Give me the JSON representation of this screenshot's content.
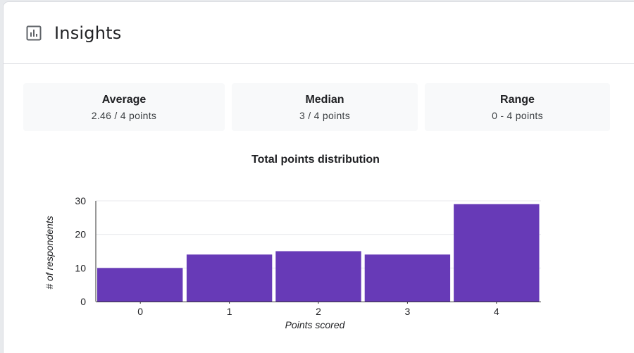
{
  "header": {
    "title": "Insights",
    "icon": "bar-chart-icon"
  },
  "stats": [
    {
      "label": "Average",
      "value": "2.46 / 4 points"
    },
    {
      "label": "Median",
      "value": "3 / 4 points"
    },
    {
      "label": "Range",
      "value": "0 - 4 points"
    }
  ],
  "colors": {
    "bar": "#673ab7",
    "grid": "#e8eaed",
    "axis": "#333333"
  },
  "chart_data": {
    "type": "bar",
    "title": "Total points distribution",
    "xlabel": "Points scored",
    "ylabel": "# of respondents",
    "categories": [
      "0",
      "1",
      "2",
      "3",
      "4"
    ],
    "values": [
      10,
      14,
      15,
      14,
      29
    ],
    "ylim": [
      0,
      30
    ],
    "yticks": [
      0,
      10,
      20,
      30
    ],
    "grid": true,
    "legend": "none"
  }
}
